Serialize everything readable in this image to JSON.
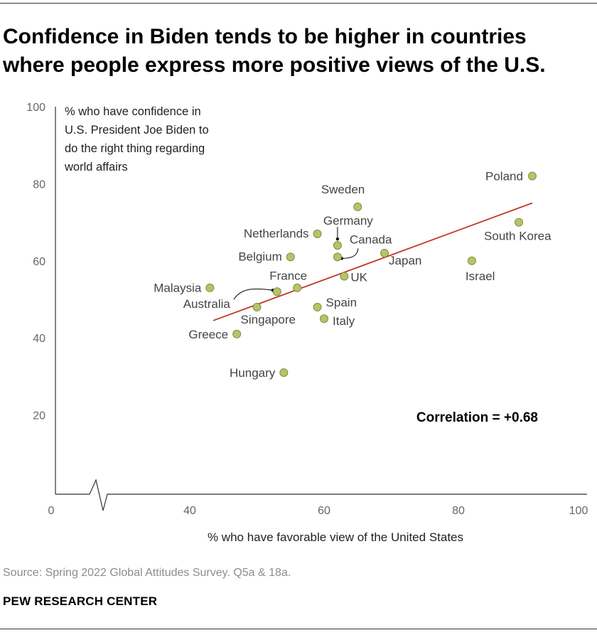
{
  "title": "Confidence in Biden tends to be higher in countries where people express more positive views of the U.S.",
  "source": "Source: Spring 2022 Global Attitudes Survey. Q5a & 18a.",
  "brand": "PEW RESEARCH CENTER",
  "colors": {
    "point_fill": "#b5c46a",
    "point_stroke": "#7f8f3a",
    "trend_line": "#c0392b",
    "axis": "#333333"
  },
  "chart_data": {
    "type": "scatter",
    "ylabel": "% who have confidence in U.S. President Joe Biden to do the right thing regarding world affairs",
    "ylabel_lines": [
      "% who have confidence in",
      "U.S. President Joe Biden to",
      "do the right thing regarding",
      "world affairs"
    ],
    "xlabel": "% who have favorable view of the United States",
    "x_ticks": [
      "0",
      "40",
      "60",
      "80",
      "100"
    ],
    "y_ticks": [
      "20",
      "40",
      "60",
      "80",
      "100"
    ],
    "axis_break": true,
    "correlation_label": "Correlation = +0.68",
    "points": [
      {
        "label": "Poland",
        "x": 91,
        "y": 82
      },
      {
        "label": "Sweden",
        "x": 65,
        "y": 74
      },
      {
        "label": "South Korea",
        "x": 89,
        "y": 70
      },
      {
        "label": "Netherlands",
        "x": 59,
        "y": 67
      },
      {
        "label": "Germany",
        "x": 62,
        "y": 64
      },
      {
        "label": "Canada",
        "x": 62,
        "y": 61
      },
      {
        "label": "Japan",
        "x": 69,
        "y": 62
      },
      {
        "label": "Belgium",
        "x": 55,
        "y": 61
      },
      {
        "label": "Israel",
        "x": 82,
        "y": 60
      },
      {
        "label": "UK",
        "x": 63,
        "y": 56
      },
      {
        "label": "France",
        "x": 56,
        "y": 53
      },
      {
        "label": "Malaysia",
        "x": 43,
        "y": 53
      },
      {
        "label": "Australia",
        "x": 53,
        "y": 52
      },
      {
        "label": "Singapore",
        "x": 50,
        "y": 48
      },
      {
        "label": "Spain",
        "x": 59,
        "y": 48
      },
      {
        "label": "Italy",
        "x": 60,
        "y": 45
      },
      {
        "label": "Greece",
        "x": 47,
        "y": 41
      },
      {
        "label": "Hungary",
        "x": 54,
        "y": 31
      }
    ],
    "trend_line": {
      "x": [
        43.5,
        91
      ],
      "y": [
        44.5,
        75
      ]
    }
  }
}
